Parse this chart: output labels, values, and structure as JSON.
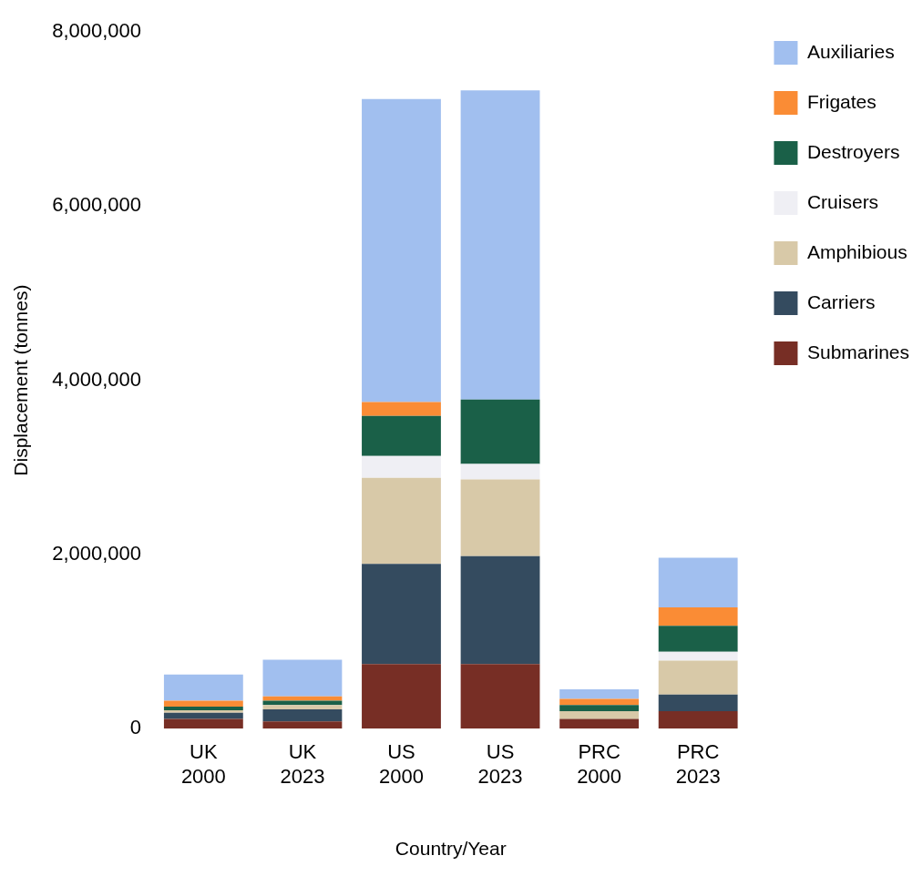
{
  "chart_data": {
    "type": "bar",
    "stacked": true,
    "xlabel": "Country/Year",
    "ylabel": "Displacement (tonnes)",
    "categories": [
      "UK 2000",
      "UK 2023",
      "US 2000",
      "US 2023",
      "PRC 2000",
      "PRC 2023"
    ],
    "series": [
      {
        "name": "Submarines",
        "color": "#772e25",
        "values": [
          110000,
          80000,
          740000,
          740000,
          110000,
          200000
        ]
      },
      {
        "name": "Carriers",
        "color": "#344b5f",
        "values": [
          70000,
          140000,
          1150000,
          1240000,
          0,
          190000
        ]
      },
      {
        "name": "Amphibious",
        "color": "#d8c9a8",
        "values": [
          30000,
          50000,
          990000,
          880000,
          90000,
          390000
        ]
      },
      {
        "name": "Cruisers",
        "color": "#efeff4",
        "values": [
          0,
          0,
          250000,
          180000,
          0,
          100000
        ]
      },
      {
        "name": "Destroyers",
        "color": "#1a6048",
        "values": [
          40000,
          50000,
          460000,
          740000,
          70000,
          300000
        ]
      },
      {
        "name": "Frigates",
        "color": "#fa8c35",
        "values": [
          70000,
          50000,
          160000,
          0,
          70000,
          210000
        ]
      },
      {
        "name": "Auxiliaries",
        "color": "#a1bfef",
        "values": [
          300000,
          420000,
          3480000,
          3550000,
          110000,
          570000
        ]
      }
    ],
    "ylim": [
      0,
      8000000
    ],
    "yticks": [
      0,
      {
        "value": 2000000,
        "label": "2,000,000"
      },
      {
        "value": 4000000,
        "label": "4,000,000"
      },
      {
        "value": 6000000,
        "label": "6,000,000"
      },
      {
        "value": 8000000,
        "label": "8,000,000"
      }
    ],
    "grid": false,
    "legend": "top right"
  }
}
